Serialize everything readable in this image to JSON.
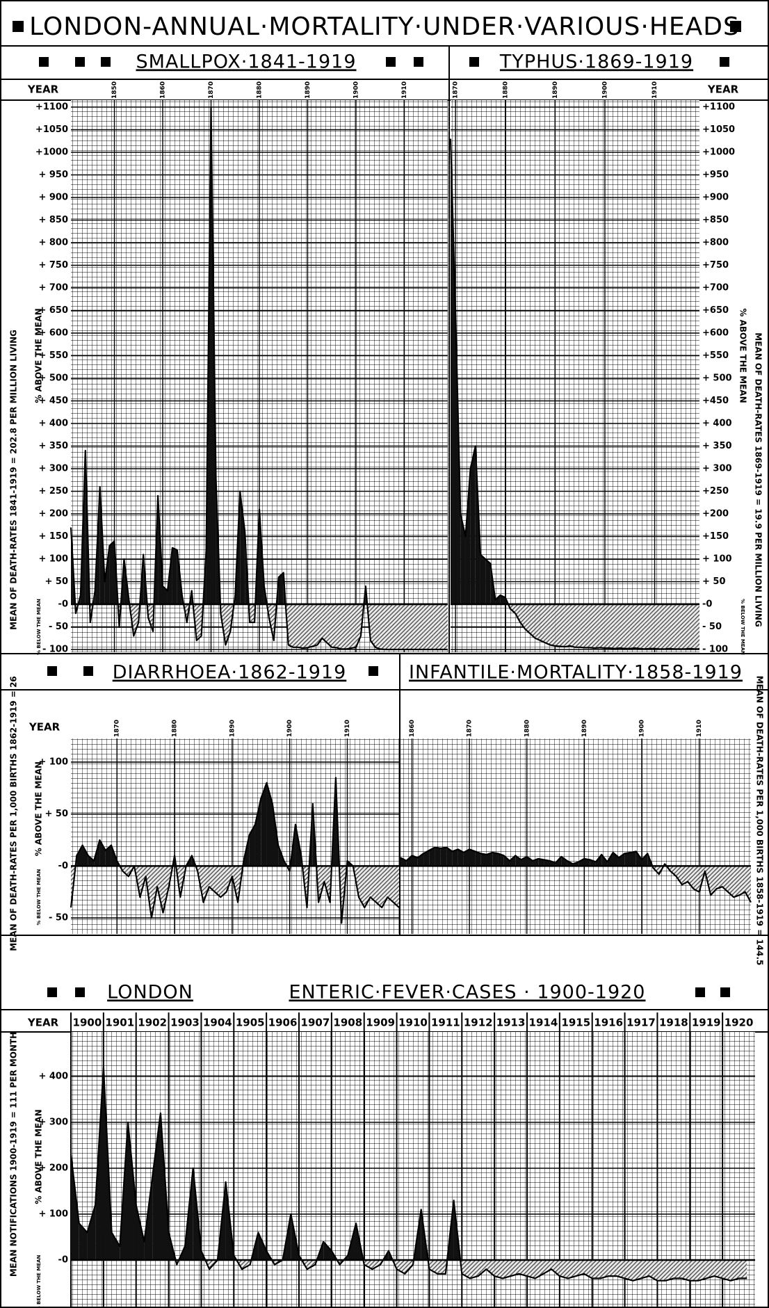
{
  "title": "LONDON-ANNUAL·MORTALITY·UNDER·VARIOUS·HEADS",
  "chart_data": [
    {
      "type": "area",
      "title": "SMALLPOX·1841-1919",
      "x_label": "YEAR",
      "y_label_above": "% ABOVE THE MEAN",
      "y_label_below": "% BELOW THE MEAN",
      "mean_label": "MEAN OF DEATH-RATES 1841-1919 = 202.8 PER MILLION LIVING",
      "x": [
        1841,
        1842,
        1843,
        1844,
        1845,
        1846,
        1847,
        1848,
        1849,
        1850,
        1851,
        1852,
        1853,
        1854,
        1855,
        1856,
        1857,
        1858,
        1859,
        1860,
        1861,
        1862,
        1863,
        1864,
        1865,
        1866,
        1867,
        1868,
        1869,
        1870,
        1871,
        1872,
        1873,
        1874,
        1875,
        1876,
        1877,
        1878,
        1879,
        1880,
        1881,
        1882,
        1883,
        1884,
        1885,
        1886,
        1887,
        1888,
        1889,
        1890,
        1891,
        1892,
        1893,
        1894,
        1895,
        1896,
        1897,
        1898,
        1899,
        1900,
        1901,
        1902,
        1903,
        1904,
        1905,
        1906,
        1907,
        1908,
        1909,
        1910,
        1911,
        1912,
        1913,
        1914,
        1915,
        1916,
        1917,
        1918,
        1919
      ],
      "values": [
        170,
        -20,
        20,
        340,
        -40,
        30,
        260,
        50,
        130,
        140,
        -50,
        100,
        10,
        -70,
        -40,
        110,
        -30,
        -60,
        240,
        40,
        30,
        125,
        120,
        20,
        -40,
        30,
        -80,
        -70,
        120,
        1100,
        280,
        -20,
        -90,
        -60,
        20,
        250,
        160,
        -40,
        -40,
        210,
        40,
        -30,
        -80,
        60,
        70,
        -90,
        -95,
        -95,
        -97,
        -96,
        -93,
        -90,
        -75,
        -85,
        -95,
        -96,
        -99,
        -99,
        -97,
        -95,
        -70,
        40,
        -80,
        -95,
        -99,
        -100,
        -100,
        -100,
        -100,
        -100,
        -100,
        -100,
        -100,
        -100,
        -100,
        -100,
        -100,
        -100,
        -100
      ],
      "xlim": [
        1841,
        1919
      ],
      "ylim": [
        -100,
        1100
      ],
      "xticks": [
        1850,
        1860,
        1870,
        1880,
        1890,
        1900,
        1910
      ],
      "yticks": [
        {
          "value": -100,
          "label": "- 100"
        },
        {
          "value": -50,
          "label": "- 50"
        },
        {
          "value": 0,
          "label": "-0"
        },
        {
          "value": 50,
          "label": "+ 50"
        },
        {
          "value": 100,
          "label": "+ 100"
        },
        {
          "value": 150,
          "label": "+ 150"
        },
        {
          "value": 200,
          "label": "+ 200"
        },
        {
          "value": 250,
          "label": "+ 250"
        },
        {
          "value": 300,
          "label": "+ 300"
        },
        {
          "value": 350,
          "label": "+ 350"
        },
        {
          "value": 400,
          "label": "+ 400"
        },
        {
          "value": 450,
          "label": "+ 450"
        },
        {
          "value": 500,
          "label": "+ 500"
        },
        {
          "value": 550,
          "label": "+ 550"
        },
        {
          "value": 600,
          "label": "+ 600"
        },
        {
          "value": 650,
          "label": "+ 650"
        },
        {
          "value": 700,
          "label": "+ 700"
        },
        {
          "value": 750,
          "label": "+ 750"
        },
        {
          "value": 800,
          "label": "+ 800"
        },
        {
          "value": 850,
          "label": "+ 850"
        },
        {
          "value": 900,
          "label": "+ 900"
        },
        {
          "value": 950,
          "label": "+ 950"
        },
        {
          "value": 1000,
          "label": "+1000"
        },
        {
          "value": 1050,
          "label": "+1050"
        },
        {
          "value": 1100,
          "label": "+1100"
        }
      ],
      "grid": true,
      "color": "#111111"
    },
    {
      "type": "area",
      "title": "TYPHUS·1869-1919",
      "x_label": "YEAR",
      "y_label_above": "% ABOVE THE MEAN",
      "y_label_below": "% BELOW THE MEAN",
      "mean_label": "MEAN OF DEATH-RATES 1869-1919 = 19.9 PER MILLION LIVING",
      "x": [
        1869,
        1870,
        1871,
        1872,
        1873,
        1874,
        1875,
        1876,
        1877,
        1878,
        1879,
        1880,
        1881,
        1882,
        1883,
        1884,
        1885,
        1886,
        1887,
        1888,
        1889,
        1890,
        1891,
        1892,
        1893,
        1894,
        1895,
        1896,
        1897,
        1898,
        1899,
        1900,
        1901,
        1902,
        1903,
        1904,
        1905,
        1906,
        1907,
        1908,
        1909,
        1910,
        1911,
        1912,
        1913,
        1914,
        1915,
        1916,
        1917,
        1918,
        1919
      ],
      "values": [
        1030,
        640,
        200,
        150,
        300,
        350,
        110,
        100,
        90,
        10,
        20,
        15,
        -10,
        -20,
        -40,
        -55,
        -65,
        -75,
        -80,
        -85,
        -90,
        -92,
        -93,
        -94,
        -92,
        -95,
        -95,
        -96,
        -96,
        -97,
        -96,
        -97,
        -97,
        -98,
        -97,
        -98,
        -98,
        -97,
        -98,
        -99,
        -98,
        -98,
        -99,
        -99,
        -98,
        -99,
        -99,
        -99,
        -98,
        -99,
        -99
      ],
      "xlim": [
        1869,
        1919
      ],
      "ylim": [
        -100,
        1100
      ],
      "xticks": [
        1870,
        1880,
        1890,
        1900,
        1910
      ],
      "yticks": [
        {
          "value": -100,
          "label": "- 100"
        },
        {
          "value": -50,
          "label": "- 50"
        },
        {
          "value": 0,
          "label": "-0"
        },
        {
          "value": 50,
          "label": "+ 50"
        },
        {
          "value": 100,
          "label": "+ 100"
        },
        {
          "value": 150,
          "label": "+150"
        },
        {
          "value": 200,
          "label": "+200"
        },
        {
          "value": 250,
          "label": "+250"
        },
        {
          "value": 300,
          "label": "+ 300"
        },
        {
          "value": 350,
          "label": "+ 350"
        },
        {
          "value": 400,
          "label": "+ 400"
        },
        {
          "value": 450,
          "label": "+450"
        },
        {
          "value": 500,
          "label": "+ 500"
        },
        {
          "value": 550,
          "label": "+550"
        },
        {
          "value": 600,
          "label": "+600"
        },
        {
          "value": 650,
          "label": "+650"
        },
        {
          "value": 700,
          "label": "+700"
        },
        {
          "value": 750,
          "label": "+750"
        },
        {
          "value": 800,
          "label": "+800"
        },
        {
          "value": 850,
          "label": "+850"
        },
        {
          "value": 900,
          "label": "+900"
        },
        {
          "value": 950,
          "label": "+950"
        },
        {
          "value": 1000,
          "label": "+1000"
        },
        {
          "value": 1050,
          "label": "+1050"
        },
        {
          "value": 1100,
          "label": "+1100"
        }
      ],
      "grid": true,
      "color": "#111111"
    },
    {
      "type": "area",
      "title": "DIARRHOEA·1862-1919",
      "x_label": "YEAR",
      "y_label_above": "% ABOVE THE MEAN",
      "y_label_below": "% BELOW THE MEAN",
      "mean_label": "MEAN OF DEATH-RATES PER 1,000 BIRTHS 1862-1919 = 26",
      "x": [
        1862,
        1863,
        1864,
        1865,
        1866,
        1867,
        1868,
        1869,
        1870,
        1871,
        1872,
        1873,
        1874,
        1875,
        1876,
        1877,
        1878,
        1879,
        1880,
        1881,
        1882,
        1883,
        1884,
        1885,
        1886,
        1887,
        1888,
        1889,
        1890,
        1891,
        1892,
        1893,
        1894,
        1895,
        1896,
        1897,
        1898,
        1899,
        1900,
        1901,
        1902,
        1903,
        1904,
        1905,
        1906,
        1907,
        1908,
        1909,
        1910,
        1911,
        1912,
        1913,
        1914,
        1915,
        1916,
        1917,
        1918,
        1919
      ],
      "values": [
        -40,
        10,
        20,
        10,
        5,
        25,
        15,
        20,
        5,
        -5,
        -10,
        0,
        -30,
        -10,
        -50,
        -20,
        -45,
        -20,
        10,
        -30,
        0,
        10,
        -5,
        -35,
        -20,
        -25,
        -30,
        -25,
        -10,
        -35,
        5,
        30,
        40,
        65,
        80,
        60,
        20,
        5,
        -5,
        40,
        10,
        -40,
        60,
        -35,
        -15,
        -35,
        85,
        -55,
        5,
        0,
        -30,
        -40,
        -30,
        -35,
        -40,
        -30,
        -35,
        -40
      ],
      "xlim": [
        1862,
        1919
      ],
      "ylim": [
        -60,
        110
      ],
      "xticks": [
        1870,
        1880,
        1890,
        1900,
        1910
      ],
      "yticks": [
        {
          "value": -50,
          "label": "- 50"
        },
        {
          "value": 0,
          "label": "-0"
        },
        {
          "value": 50,
          "label": "+ 50"
        },
        {
          "value": 100,
          "label": "+ 100"
        }
      ],
      "grid": true,
      "color": "#111111"
    },
    {
      "type": "area",
      "title": "INFANTILE·MORTALITY·1858-1919",
      "mean_label": "MEAN OF DEATH-RATES PER 1,000 BIRTHS 1858-1919 = 144.5",
      "x": [
        1858,
        1859,
        1860,
        1861,
        1862,
        1863,
        1864,
        1865,
        1866,
        1867,
        1868,
        1869,
        1870,
        1871,
        1872,
        1873,
        1874,
        1875,
        1876,
        1877,
        1878,
        1879,
        1880,
        1881,
        1882,
        1883,
        1884,
        1885,
        1886,
        1887,
        1888,
        1889,
        1890,
        1891,
        1892,
        1893,
        1894,
        1895,
        1896,
        1897,
        1898,
        1899,
        1900,
        1901,
        1902,
        1903,
        1904,
        1905,
        1906,
        1907,
        1908,
        1909,
        1910,
        1911,
        1912,
        1913,
        1914,
        1915,
        1916,
        1917,
        1918,
        1919
      ],
      "values": [
        8,
        5,
        10,
        8,
        12,
        15,
        18,
        17,
        18,
        14,
        16,
        13,
        16,
        14,
        12,
        11,
        13,
        12,
        10,
        5,
        10,
        6,
        9,
        5,
        7,
        6,
        5,
        3,
        9,
        5,
        2,
        4,
        7,
        6,
        4,
        11,
        4,
        13,
        8,
        12,
        13,
        14,
        6,
        12,
        -2,
        -8,
        2,
        -5,
        -10,
        -18,
        -15,
        -22,
        -25,
        -5,
        -28,
        -22,
        -20,
        -25,
        -30,
        -28,
        -25,
        -35
      ],
      "xlim": [
        1858,
        1919
      ],
      "ylim": [
        -60,
        110
      ],
      "xticks": [
        1860,
        1870,
        1880,
        1890,
        1900,
        1910
      ],
      "grid": true,
      "color": "#111111"
    },
    {
      "type": "area",
      "title_lead": "LONDON",
      "title": "ENTERIC·FEVER·CASES · 1900-1920",
      "x_label": "YEAR",
      "y_label_above": "% ABOVE THE MEAN",
      "y_label_below": "% BELOW THE MEAN",
      "mean_label": "MEAN NOTIFICATIONS 1900-1919 = 111 PER MONTH",
      "x": [
        1900,
        1900.25,
        1900.5,
        1900.75,
        1901,
        1901.25,
        1901.5,
        1901.75,
        1902,
        1902.25,
        1902.5,
        1902.75,
        1903,
        1903.25,
        1903.5,
        1903.75,
        1904,
        1904.25,
        1904.5,
        1904.75,
        1905,
        1905.25,
        1905.5,
        1905.75,
        1906,
        1906.25,
        1906.5,
        1906.75,
        1907,
        1907.25,
        1907.5,
        1907.75,
        1908,
        1908.25,
        1908.5,
        1908.75,
        1909,
        1909.25,
        1909.5,
        1909.75,
        1910,
        1910.25,
        1910.5,
        1910.75,
        1911,
        1911.25,
        1911.5,
        1911.75,
        1912,
        1912.25,
        1912.5,
        1912.75,
        1913,
        1913.25,
        1913.5,
        1913.75,
        1914,
        1914.25,
        1914.5,
        1914.75,
        1915,
        1915.25,
        1915.5,
        1915.75,
        1916,
        1916.25,
        1916.5,
        1916.75,
        1917,
        1917.25,
        1917.5,
        1917.75,
        1918,
        1918.25,
        1918.5,
        1918.75,
        1919,
        1919.25,
        1919.5,
        1919.75,
        1920,
        1920.25,
        1920.5,
        1920.75
      ],
      "values": [
        230,
        80,
        60,
        120,
        420,
        60,
        30,
        300,
        120,
        40,
        180,
        320,
        60,
        -10,
        30,
        200,
        20,
        -20,
        0,
        170,
        10,
        -20,
        -10,
        60,
        20,
        -10,
        0,
        100,
        10,
        -20,
        -10,
        40,
        20,
        -10,
        10,
        80,
        -10,
        -20,
        -10,
        20,
        -20,
        -30,
        -10,
        110,
        -20,
        -30,
        -30,
        130,
        -30,
        -40,
        -35,
        -20,
        -35,
        -40,
        -35,
        -30,
        -35,
        -40,
        -30,
        -20,
        -35,
        -40,
        -35,
        -30,
        -40,
        -40,
        -35,
        -35,
        -40,
        -45,
        -40,
        -35,
        -45,
        -45,
        -40,
        -40,
        -45,
        -45,
        -40,
        -35,
        -40,
        -45,
        -40,
        -40
      ],
      "xlim": [
        1900,
        1921
      ],
      "ylim": [
        -100,
        450
      ],
      "xticks": [
        1900,
        1901,
        1902,
        1903,
        1904,
        1905,
        1906,
        1907,
        1908,
        1909,
        1910,
        1911,
        1912,
        1913,
        1914,
        1915,
        1916,
        1917,
        1918,
        1919,
        1920
      ],
      "yticks": [
        {
          "value": 0,
          "label": "-0"
        },
        {
          "value": 100,
          "label": "+ 100"
        },
        {
          "value": 200,
          "label": "+ 200"
        },
        {
          "value": 300,
          "label": "+ 300"
        },
        {
          "value": 400,
          "label": "+ 400"
        }
      ],
      "grid": true,
      "color": "#111111"
    }
  ]
}
